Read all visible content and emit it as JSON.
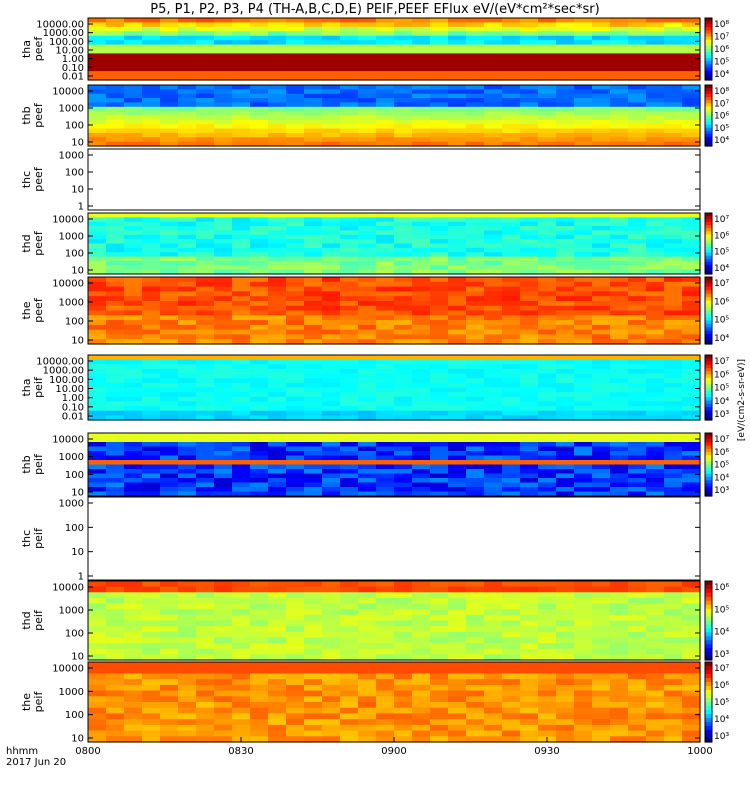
{
  "title": "P5, P1, P2, P3, P4 (TH-A,B,C,D,E) PEIF,PEEF EFlux eV/(eV*cm²*sec*sr)",
  "chart_data": {
    "type": "heatmap",
    "x_ticks": [
      "0800",
      "0830",
      "0900",
      "0930",
      "1000"
    ],
    "x_range": [
      "0800",
      "1000"
    ],
    "x_label_line1": "hhmm",
    "x_label_line2": "2017 Jun 20",
    "colorbar_label": "[eV/(cm2-s-sr-eV)]",
    "panels": [
      {
        "probe": "tha",
        "species": "peef",
        "yticks": [
          "10000.00",
          "1000.00",
          "100.00",
          "10.00",
          "1.00",
          "0.10",
          "0.01"
        ],
        "scale": "log",
        "colorbar_ticks": [
          "10⁸",
          "10⁷",
          "10⁶",
          "10⁵",
          "10⁴"
        ],
        "has_data": true
      },
      {
        "probe": "thb",
        "species": "peef",
        "yticks": [
          "10000",
          "1000",
          "100",
          "10"
        ],
        "scale": "log",
        "colorbar_ticks": [
          "10⁸",
          "10⁷",
          "10⁶",
          "10⁵",
          "10⁴"
        ],
        "has_data": true
      },
      {
        "probe": "thc",
        "species": "peef",
        "yticks": [
          "1000",
          "100",
          "10",
          "1"
        ],
        "scale": "log",
        "colorbar_ticks": [],
        "has_data": false
      },
      {
        "probe": "thd",
        "species": "peef",
        "yticks": [
          "10000",
          "1000",
          "100",
          "10"
        ],
        "scale": "log",
        "colorbar_ticks": [
          "10⁷",
          "10⁶",
          "10⁵",
          "10⁴"
        ],
        "has_data": true
      },
      {
        "probe": "the",
        "species": "peef",
        "yticks": [
          "10000",
          "1000",
          "100",
          "10"
        ],
        "scale": "log",
        "colorbar_ticks": [
          "10⁷",
          "10⁶",
          "10⁵",
          "10⁴"
        ],
        "has_data": true
      },
      {
        "probe": "tha",
        "species": "peif",
        "yticks": [
          "10000.00",
          "1000.00",
          "100.00",
          "10.00",
          "1.00",
          "0.10",
          "0.01"
        ],
        "scale": "log",
        "colorbar_ticks": [
          "10⁷",
          "10⁶",
          "10⁵",
          "10⁴",
          "10³"
        ],
        "has_data": true
      },
      {
        "probe": "thb",
        "species": "peif",
        "yticks": [
          "10000",
          "1000",
          "100",
          "10"
        ],
        "scale": "log",
        "colorbar_ticks": [
          "10⁷",
          "10⁶",
          "10⁵",
          "10⁴",
          "10³"
        ],
        "has_data": true
      },
      {
        "probe": "thc",
        "species": "peif",
        "yticks": [
          "1000",
          "100",
          "10",
          "1"
        ],
        "scale": "log",
        "colorbar_ticks": [],
        "has_data": false
      },
      {
        "probe": "thd",
        "species": "peif",
        "yticks": [
          "10000",
          "1000",
          "100",
          "10"
        ],
        "scale": "log",
        "colorbar_ticks": [
          "10⁶",
          "10⁵",
          "10⁴",
          "10³"
        ],
        "has_data": true
      },
      {
        "probe": "the",
        "species": "peif",
        "yticks": [
          "10000",
          "1000",
          "100",
          "10"
        ],
        "scale": "log",
        "colorbar_ticks": [
          "10⁷",
          "10⁶",
          "10⁵",
          "10⁴",
          "10³"
        ],
        "has_data": true
      }
    ]
  }
}
